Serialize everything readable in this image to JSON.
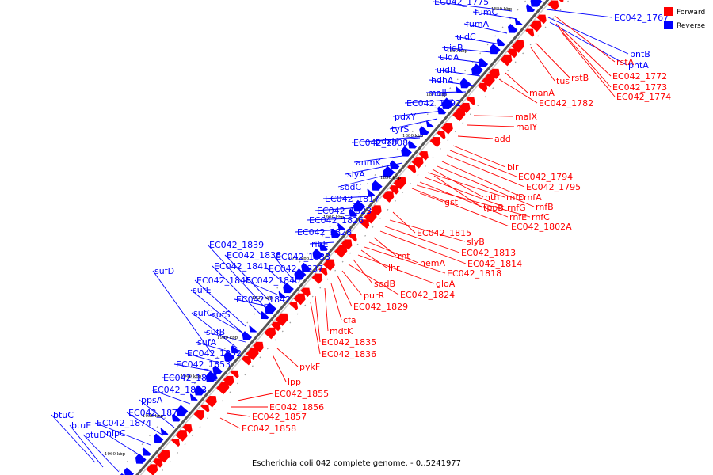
{
  "caption": "Escherichia coli 042 complete genome. - 0..5241977",
  "legend": [
    {
      "label": "Forward",
      "color": "#ff0000"
    },
    {
      "label": "Reverse",
      "color": "#0000ff"
    }
  ],
  "colors": {
    "forward": "#ff0000",
    "reverse": "#0000ff",
    "axis": "#555555"
  },
  "ticks": [
    "1850 kbp",
    "1860 kbp",
    "1870 kbp",
    "1880 kbp",
    "1890 kbp",
    "1900 kbp",
    "1910 kbp",
    "1920 kbp",
    "1930 kbp",
    "1940 kbp",
    "1950 kbp",
    "1960 kbp"
  ],
  "reverse_labels": [
    "EC042_1775",
    "fumC",
    "fumA",
    "uidC",
    "uidB",
    "uidA",
    "uidR",
    "hdhA",
    "malI",
    "EC042_1792",
    "pdxY",
    "tyrS",
    "EC042_1808",
    "pdxH",
    "anmK",
    "slyA",
    "sodC",
    "EC042_1817",
    "EC042_1823",
    "EC042_1826",
    "EC042_1828",
    "ribE",
    "EC042_1839",
    "EC042_1838",
    "EC042_1833",
    "EC042_1841",
    "EC042_1837",
    "sufD",
    "EC042_1845",
    "EC042_1840",
    "sufE",
    "EC042_1842",
    "sufS",
    "sufC",
    "sufB",
    "sufA",
    "EC042_1852",
    "EC042_1853",
    "EC042_1854",
    "EC042_1863",
    "ppsA",
    "btuC",
    "EC042_1873",
    "btuE",
    "EC042_1874",
    "btuD",
    "nlpC",
    "EC042_1767",
    "pntB",
    "pntA"
  ],
  "forward_labels": [
    "rstA",
    "tus",
    "rstB",
    "EC042_1772",
    "EC042_1773",
    "EC042_1774",
    "manA",
    "EC042_1782",
    "malX",
    "malY",
    "add",
    "blr",
    "EC042_1794",
    "EC042_1795",
    "rnfA",
    "rnfB",
    "nth",
    "rnfD",
    "rnfG",
    "tppB",
    "rnfE",
    "rnfC",
    "gst",
    "EC042_1802A",
    "EC042_1815",
    "slyB",
    "EC042_1813",
    "EC042_1814",
    "rnt",
    "nemA",
    "EC042_1818",
    "lhr",
    "gloA",
    "sodB",
    "EC042_1824",
    "purR",
    "EC042_1829",
    "cfa",
    "mdtK",
    "EC042_1835",
    "EC042_1836",
    "pykF",
    "lpp",
    "EC042_1855",
    "EC042_1856",
    "EC042_1857",
    "EC042_1858"
  ]
}
